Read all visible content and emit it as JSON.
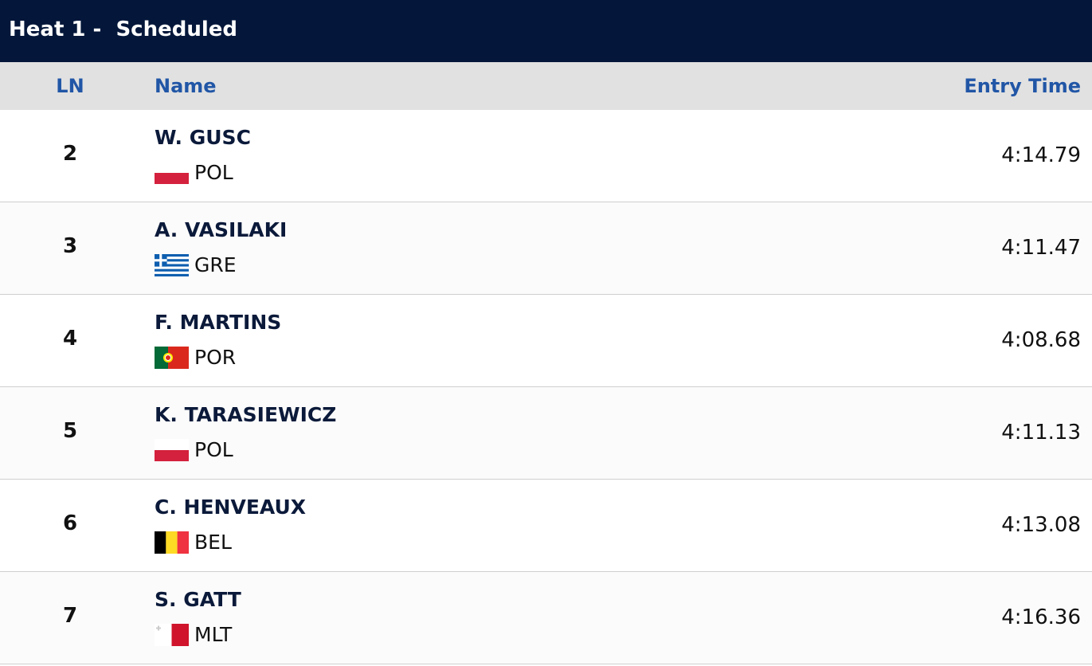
{
  "header": {
    "title": "Heat 1 -  Scheduled"
  },
  "table": {
    "columns": [
      "LN",
      "Name",
      "Entry Time"
    ],
    "rows": [
      {
        "lane": 2,
        "name": "W. GUSC",
        "country": "POL",
        "time": "4:14.79"
      },
      {
        "lane": 3,
        "name": "A. VASILAKI",
        "country": "GRE",
        "time": "4:11.47"
      },
      {
        "lane": 4,
        "name": "F. MARTINS",
        "country": "POR",
        "time": "4:08.68"
      },
      {
        "lane": 5,
        "name": "K. TARASIEWICZ",
        "country": "POL",
        "time": "4:11.13"
      },
      {
        "lane": 6,
        "name": "C. HENVEAUX",
        "country": "BEL",
        "time": "4:13.08"
      },
      {
        "lane": 7,
        "name": "S. GATT",
        "country": "MLT",
        "time": "4:16.36"
      }
    ]
  }
}
